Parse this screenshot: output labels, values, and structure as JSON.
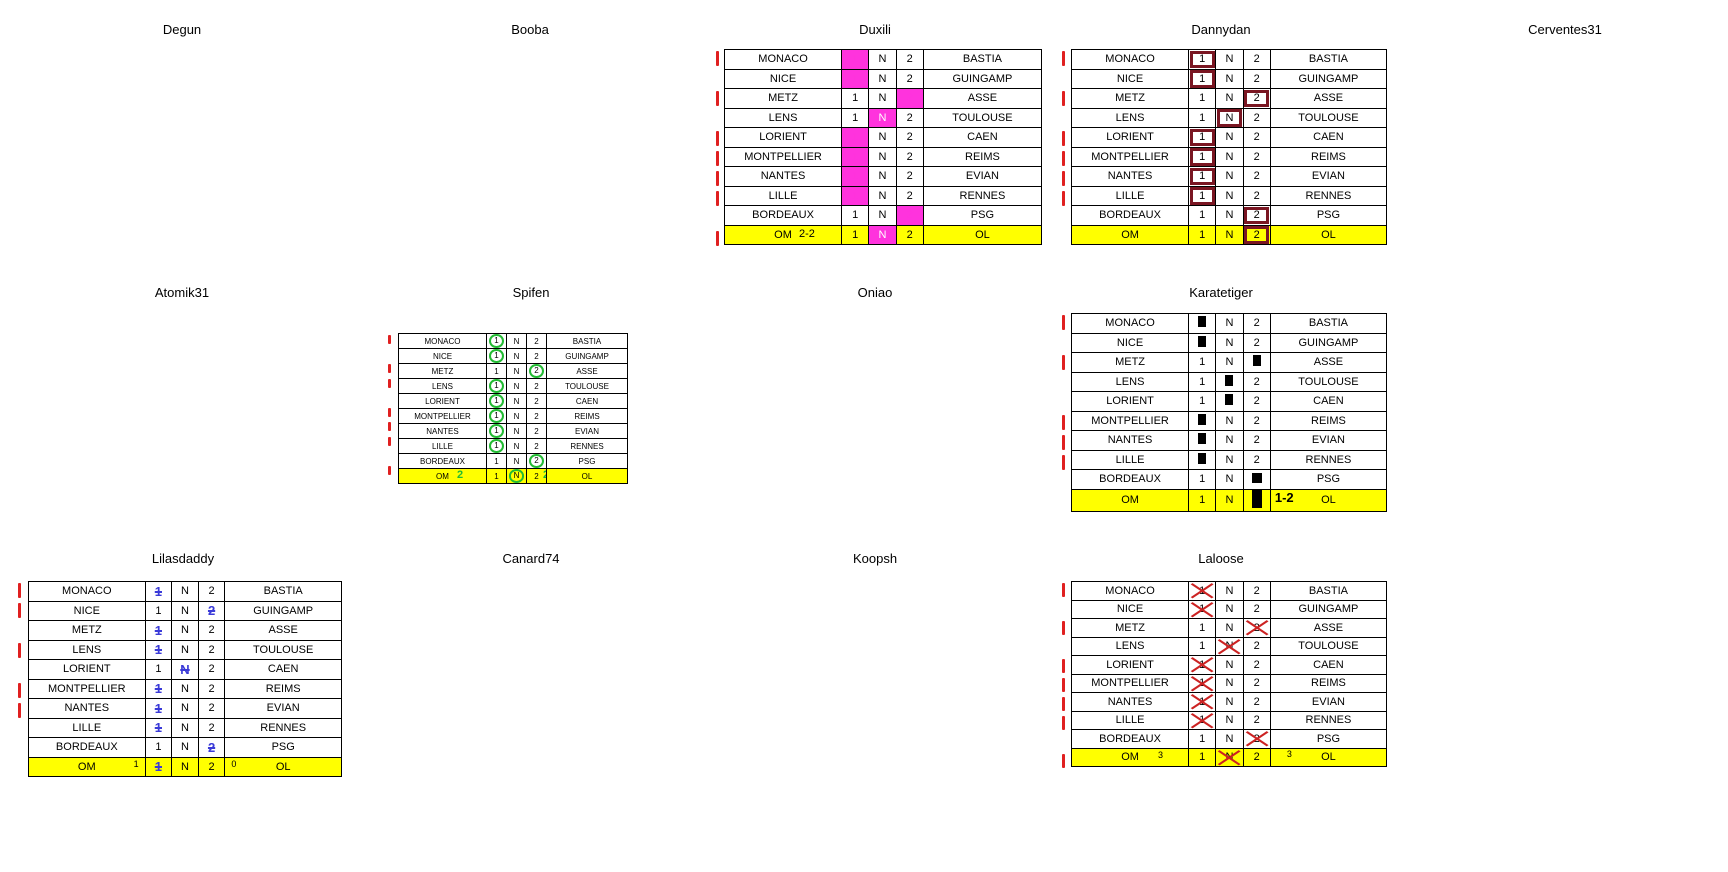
{
  "players": {
    "degun": "Degun",
    "booba": "Booba",
    "duxili": "Duxili",
    "dannydan": "Dannydan",
    "cervantes": "Cerventes31",
    "atomik": "Atomik31",
    "spifen": "Spifen",
    "oniao": "Oniao",
    "karatetiger": "Karatetiger",
    "lilasdaddy": "Lilasdaddy",
    "canard": "Canard74",
    "koopsh": "Koopsh",
    "laloose": "Laloose"
  },
  "matches": [
    {
      "home": "MONACO",
      "away": "BASTIA"
    },
    {
      "home": "NICE",
      "away": "GUINGAMP"
    },
    {
      "home": "METZ",
      "away": "ASSE"
    },
    {
      "home": "LENS",
      "away": "TOULOUSE"
    },
    {
      "home": "LORIENT",
      "away": "CAEN"
    },
    {
      "home": "MONTPELLIER",
      "away": "REIMS"
    },
    {
      "home": "NANTES",
      "away": "EVIAN"
    },
    {
      "home": "LILLE",
      "away": "RENNES"
    },
    {
      "home": "BORDEAUX",
      "away": "PSG"
    },
    {
      "home": "OM",
      "away": "OL"
    }
  ],
  "options": {
    "home": "1",
    "draw": "N",
    "away": "2"
  },
  "picks": {
    "duxili": [
      "1",
      "1",
      "2",
      "N",
      "1",
      "1",
      "1",
      "1",
      "2",
      "N"
    ],
    "dannydan": [
      "1",
      "1",
      "2",
      "N",
      "1",
      "1",
      "1",
      "1",
      "2",
      "2"
    ],
    "spifen": [
      "1",
      "1",
      "2",
      "1",
      "1",
      "1",
      "1",
      "1",
      "2",
      "N"
    ],
    "karatetiger": [
      "1",
      "1",
      "2",
      "N",
      "N",
      "1",
      "1",
      "1",
      "2",
      "2"
    ],
    "lilasdaddy": [
      "1",
      "2",
      "1",
      "1",
      "N",
      "1",
      "1",
      "1",
      "2",
      "1"
    ],
    "laloose": [
      "1",
      "1",
      "2",
      "N",
      "1",
      "1",
      "1",
      "1",
      "2",
      "N"
    ]
  },
  "scores": {
    "duxili": "2-2",
    "spifen_home": "2",
    "spifen_away": "2",
    "karatetiger": "1-2",
    "lilasdaddy_home": "1",
    "lilasdaddy_away": "0",
    "laloose_home": "3",
    "laloose_away": "3"
  },
  "colors": {
    "highlight_row": "#ffff00",
    "duxili_mark": "#ff33dd",
    "dannydan_mark": "#7a1622",
    "spifen_mark": "#22bb33",
    "lilasdaddy_mark": "#3a3ad8",
    "laloose_mark": "#cc2222",
    "tick": "#e02020"
  }
}
